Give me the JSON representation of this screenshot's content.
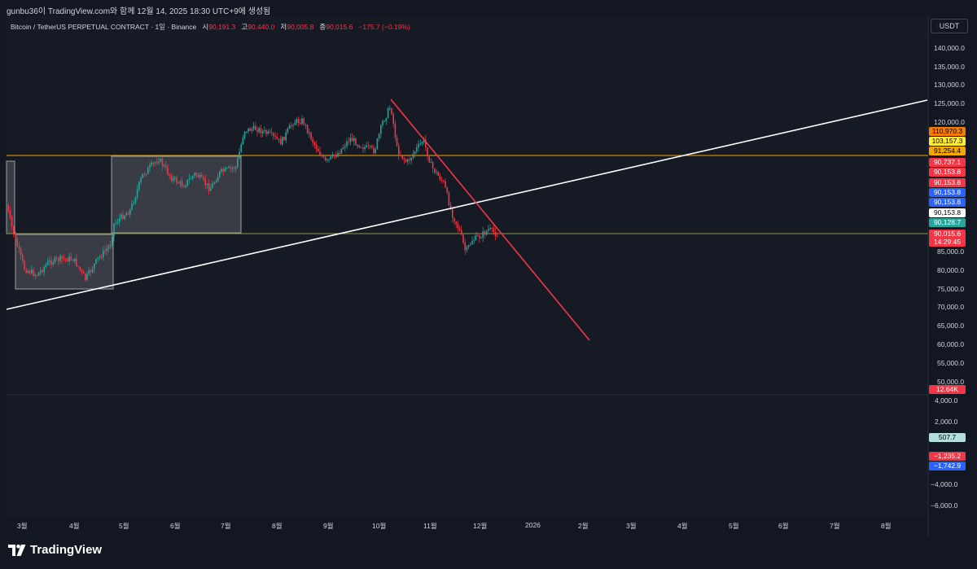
{
  "header": {
    "attribution": "gunbu36이 TradingView.com와 함께 12월 14, 2025 18:30 UTC+9에 생성됨"
  },
  "legend": {
    "symbol": "Bitcoin / TetherUS PERPETUAL CONTRACT · 1일 · Binance",
    "open_label": "시",
    "open": "90,191.3",
    "high_label": "고",
    "high": "90,440.0",
    "low_label": "저",
    "low": "90,005.8",
    "close_label": "종",
    "close": "90,015.6",
    "change": "−175.7 (−0.19%)"
  },
  "currency_button": "USDT",
  "price_axis": [
    "140,000.0",
    "135,000.0",
    "130,000.0",
    "125,000.0",
    "120,000.0",
    "85,000.0",
    "80,000.0",
    "75,000.0",
    "70,000.0",
    "65,000.0",
    "60,000.0",
    "55,000.0",
    "50,000.0"
  ],
  "indicator_axis": [
    "4,000.0",
    "2,000.0",
    "−4,000.0",
    "−6,000.0"
  ],
  "price_tags": [
    {
      "text": "110,970.3",
      "bg": "#f57c00",
      "fg": "#000000"
    },
    {
      "text": "103,157.3",
      "bg": "#ffeb3b",
      "fg": "#000000"
    },
    {
      "text": "91,254.4",
      "bg": "#f7a600",
      "fg": "#000000"
    },
    {
      "text": "90,737.1",
      "bg": "#f23645",
      "fg": "#ffffff"
    },
    {
      "text": "90,153.8",
      "bg": "#f23645",
      "fg": "#ffffff"
    },
    {
      "text": "90,153.8",
      "bg": "#f23645",
      "fg": "#ffffff"
    },
    {
      "text": "90,153.8",
      "bg": "#2962ff",
      "fg": "#ffffff"
    },
    {
      "text": "90,153.8",
      "bg": "#2962ff",
      "fg": "#ffffff"
    },
    {
      "text": "90,153.8",
      "bg": "#ffffff",
      "fg": "#000000"
    },
    {
      "text": "90,128.7",
      "bg": "#26a69a",
      "fg": "#ffffff"
    },
    {
      "text": "90,015.6",
      "bg": "#f23645",
      "fg": "#ffffff"
    },
    {
      "text": "14:29:45",
      "bg": "#f23645",
      "fg": "#ffffff"
    }
  ],
  "volume_tag": {
    "text": "12.64K",
    "bg": "#f23645",
    "fg": "#ffffff"
  },
  "indicator_tags": [
    {
      "text": "507.7",
      "bg": "#b2dfdb",
      "fg": "#000000"
    },
    {
      "text": "−1,235.2",
      "bg": "#f23645",
      "fg": "#ffffff"
    },
    {
      "text": "−1,742.9",
      "bg": "#2962ff",
      "fg": "#ffffff"
    }
  ],
  "time_axis": [
    "3월",
    "4월",
    "5월",
    "6월",
    "7월",
    "8월",
    "9월",
    "10월",
    "11월",
    "12월",
    "2026",
    "2월",
    "3월",
    "4월",
    "5월",
    "6월",
    "7월",
    "8월"
  ],
  "brand": "TradingView",
  "colors": {
    "background": "#131722",
    "up": "#26a69a",
    "down": "#f23645",
    "trendline_white": "#ffffff",
    "trendline_red": "#f23645",
    "level_orange": "#f7a600",
    "level_olive": "#8d9a45"
  }
}
